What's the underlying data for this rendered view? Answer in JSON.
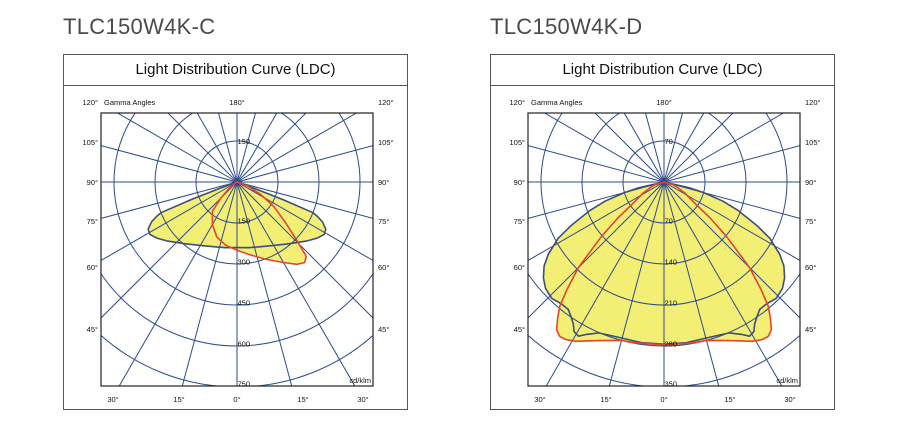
{
  "products": [
    {
      "name": "TLC150W4K-C",
      "panel_title": "Light Distribution Curve (LDC)"
    },
    {
      "name": "TLC150W4K-D",
      "panel_title": "Light Distribution Curve (LDC)"
    }
  ],
  "colors": {
    "grid": "#2d4b8e",
    "curve_a": "#3c4f78",
    "curve_b": "#e8432b",
    "fill": "#f3ef74"
  },
  "chart_data": [
    {
      "type": "polar",
      "title": "Light Distribution Curve (LDC)",
      "axis_label": "Gamma Angles",
      "unit": "cd/klm",
      "rmax": 750,
      "ring_values": [
        150,
        300,
        450,
        600,
        750
      ],
      "ring_labels": [
        "150",
        "300",
        "450",
        "600",
        "750"
      ],
      "ring_label_above": "150",
      "angle_labels_side": [
        "120°",
        "105°",
        "90°",
        "75°",
        "60°",
        "45°"
      ],
      "angle_labels_bottom": [
        "30°",
        "15°",
        "0°",
        "15°",
        "30°"
      ],
      "top_label": "180°",
      "ray_step_deg": 15,
      "series": [
        {
          "color": "#3c4f78",
          "symmetric": true,
          "gamma": [
            0,
            10,
            20,
            30,
            40,
            50,
            55,
            59,
            62,
            65,
            67,
            68,
            69,
            70,
            71,
            80
          ],
          "values": [
            240,
            244,
            252,
            268,
            295,
            335,
            358,
            372,
            368,
            345,
            318,
            300,
            180,
            60,
            5,
            0
          ]
        },
        {
          "color": "#e8432b",
          "symmetric": false,
          "gamma": [
            -80,
            -60,
            -50,
            -45,
            -40,
            -30,
            -20,
            -10,
            0,
            10,
            20,
            30,
            36,
            40,
            43,
            46,
            50,
            56,
            62,
            70,
            80
          ],
          "values": [
            0,
            5,
            40,
            85,
            140,
            180,
            215,
            235,
            250,
            270,
            300,
            340,
            372,
            385,
            372,
            300,
            232,
            165,
            100,
            40,
            0
          ]
        }
      ]
    },
    {
      "type": "polar",
      "title": "Light Distribution Curve (LDC)",
      "axis_label": "Gamma Angles",
      "unit": "cd/klm",
      "rmax": 350,
      "ring_values": [
        70,
        140,
        210,
        280,
        350
      ],
      "ring_labels": [
        "70",
        "140",
        "210",
        "280",
        "350"
      ],
      "ring_label_above": "70",
      "angle_labels_side": [
        "120°",
        "105°",
        "90°",
        "75°",
        "60°",
        "45°"
      ],
      "angle_labels_bottom": [
        "30°",
        "15°",
        "0°",
        "15°",
        "30°"
      ],
      "top_label": "180°",
      "ray_step_deg": 15,
      "series": [
        {
          "color": "#3c4f78",
          "symmetric": true,
          "gamma": [
            0,
            8,
            15,
            20,
            23.5,
            27,
            29,
            31,
            32.5,
            35,
            37,
            40,
            44,
            48,
            51.5,
            55,
            58,
            62,
            65,
            69,
            72,
            75,
            77,
            80
          ],
          "values": [
            277,
            277,
            276,
            278,
            281,
            292,
            301,
            298,
            288,
            278,
            272,
            272,
            276,
            272,
            263,
            250,
            233,
            205,
            174,
            135,
            106,
            70,
            45,
            0
          ]
        },
        {
          "color": "#e8432b",
          "symmetric": true,
          "gamma": [
            0,
            10,
            15,
            22,
            29,
            32,
            34,
            36,
            38,
            40,
            42,
            45,
            49,
            52,
            55,
            62,
            68,
            73,
            78
          ],
          "values": [
            278,
            279,
            280,
            292,
            311,
            317,
            318,
            312,
            295,
            277,
            248,
            207,
            141,
            100,
            67,
            40,
            25,
            16,
            0
          ]
        }
      ]
    }
  ]
}
